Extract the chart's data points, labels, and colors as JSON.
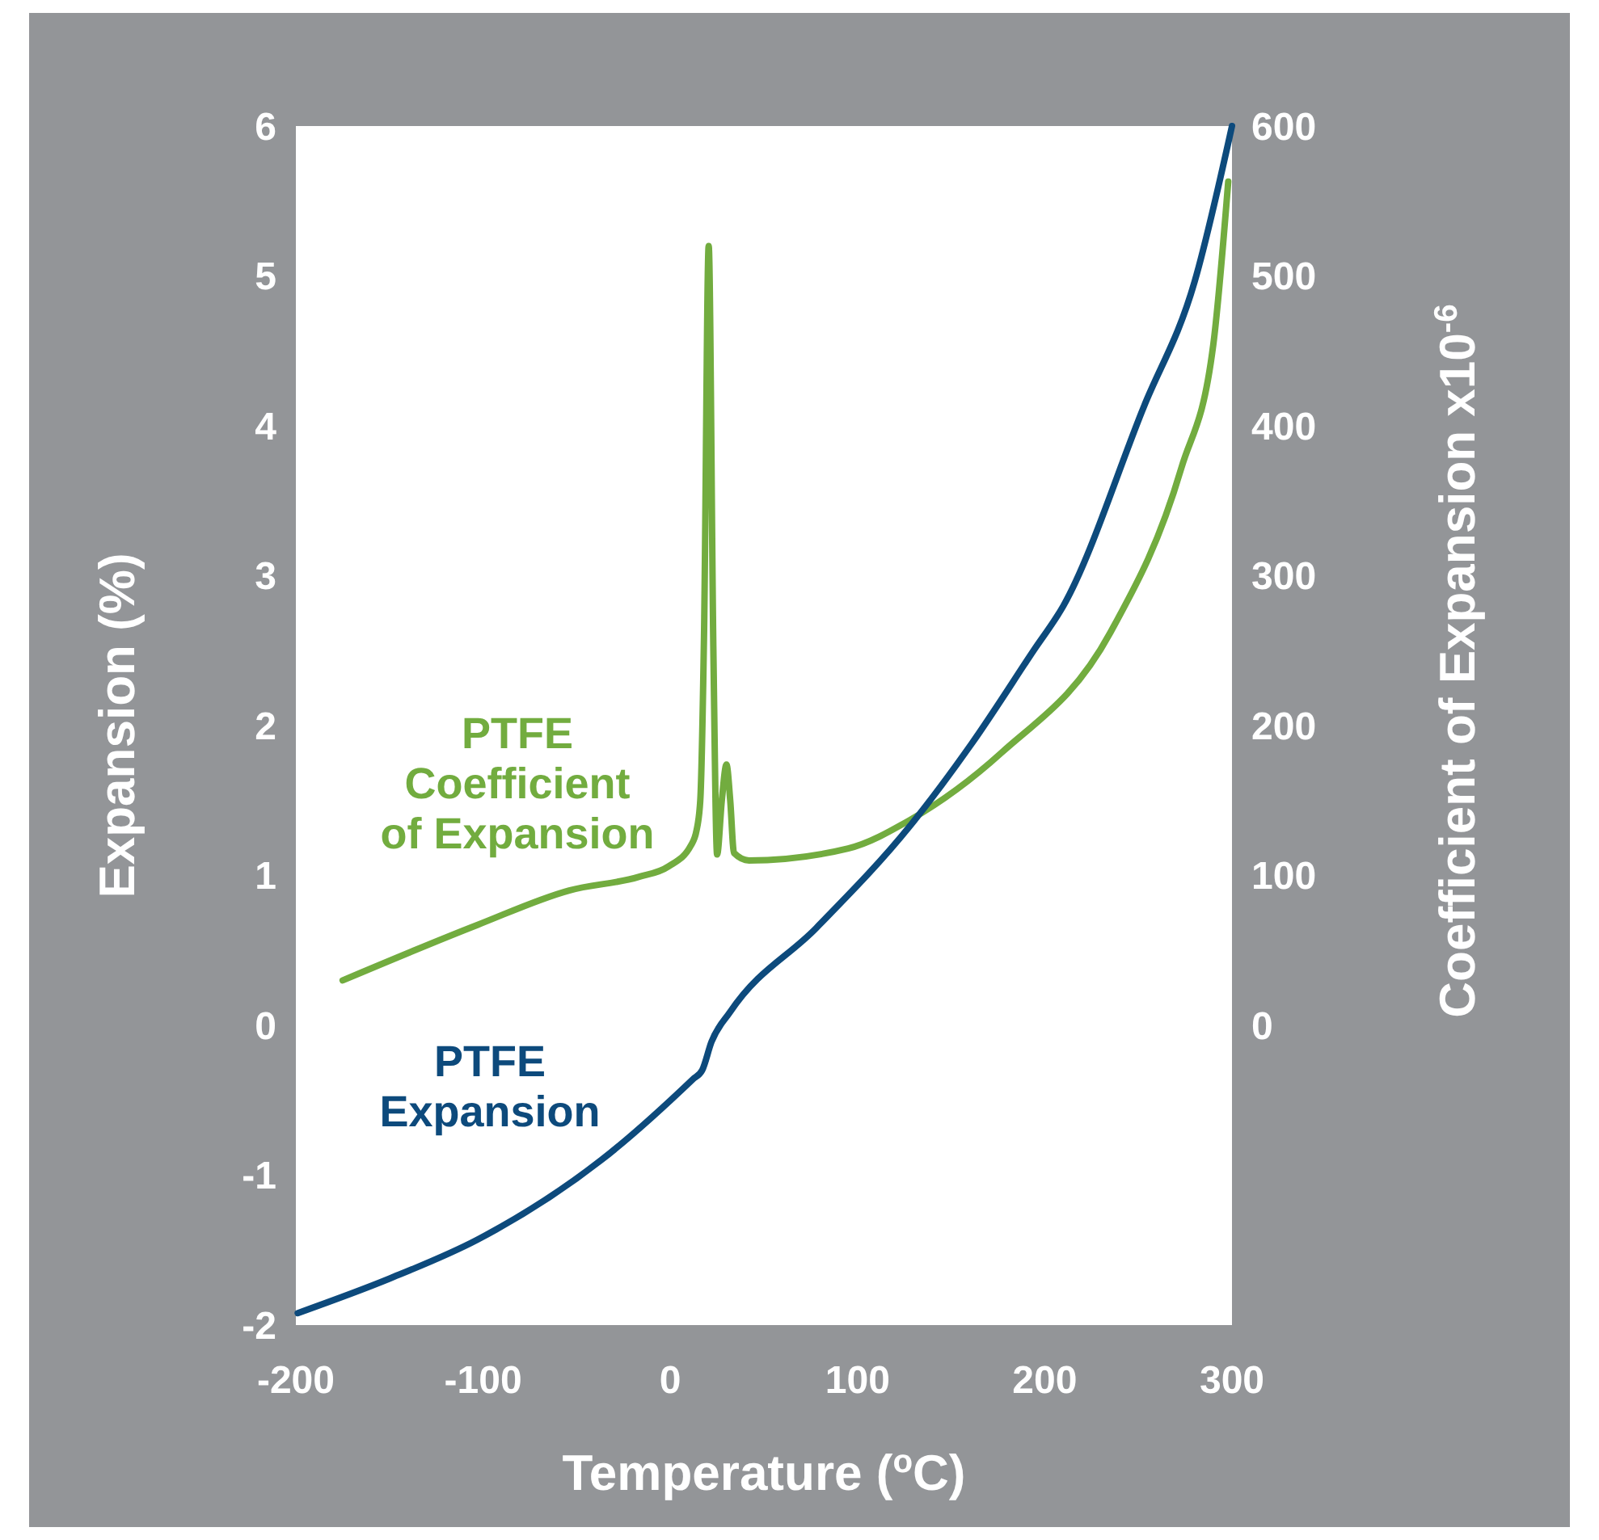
{
  "chart_data": {
    "type": "line",
    "xlabel": "Temperature ($^{o}$C)",
    "ylabel": "Expansion (%)",
    "y2label": "Coefficient of Expansion x10$^{-6}$",
    "xlim": [
      -200,
      300
    ],
    "xticks": [
      -200,
      -100,
      0,
      100,
      200,
      300
    ],
    "ylim": [
      -2,
      6
    ],
    "yticks": [
      -2,
      -1,
      0,
      1,
      2,
      3,
      4,
      5,
      6
    ],
    "y2lim": [
      -200,
      600
    ],
    "y2ticks": [
      0,
      100,
      200,
      300,
      400,
      500,
      600
    ],
    "grid": false,
    "marker": "none",
    "line_style": "solid",
    "series": [
      {
        "name": "PTFE Coefficient of Expansion",
        "color": "#72ac3f",
        "axis": "y2",
        "x": [
          -175,
          -103,
          -54,
          -17,
          -1,
          11,
          14,
          16,
          18,
          20.5,
          23,
          25,
          27.5,
          30,
          32,
          34,
          42,
          95,
          128,
          177,
          235,
          273,
          290,
          298
        ],
        "values": [
          30,
          67,
          90,
          99,
          106,
          120,
          130,
          150,
          260,
          520,
          250,
          114,
          150,
          174,
          150,
          115,
          110,
          118,
          137,
          182,
          262,
          372,
          454,
          563
        ]
      },
      {
        "name": "PTFE Expansion",
        "color": "#0d4a7c",
        "x": [
          -199,
          -150,
          -103,
          -37,
          12,
          17,
          22,
          32,
          78,
          128,
          161,
          194,
          210,
          253,
          280,
          300
        ],
        "values": [
          -1.92,
          -1.69,
          -1.43,
          -0.9,
          -0.36,
          -0.3,
          -0.11,
          0.09,
          0.65,
          1.33,
          1.88,
          2.5,
          2.8,
          4.13,
          4.96,
          6.0
        ]
      }
    ]
  }
}
